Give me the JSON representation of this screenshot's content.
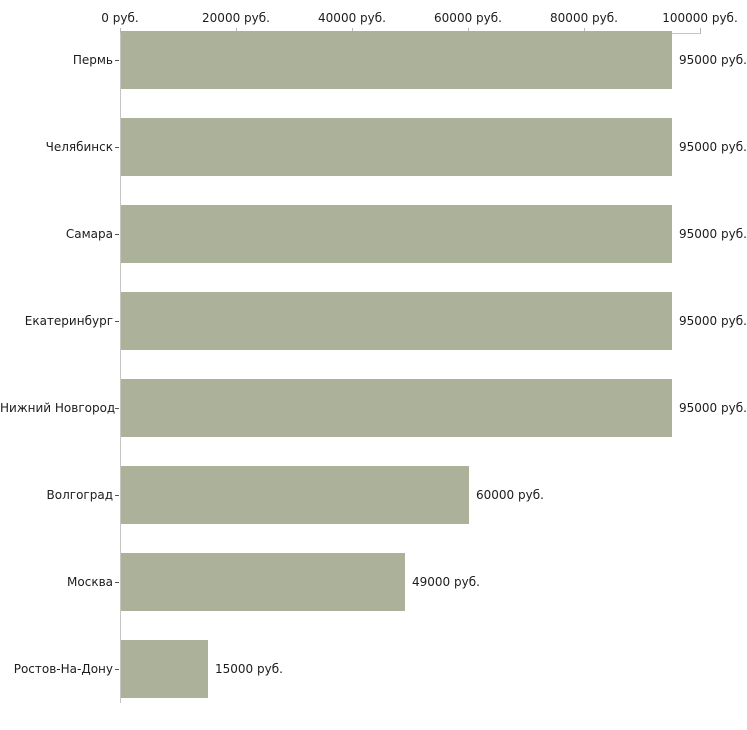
{
  "chart_data": {
    "type": "bar",
    "orientation": "horizontal",
    "title": "",
    "xlabel": "",
    "ylabel": "",
    "unit": "руб.",
    "categories": [
      "Пермь",
      "Челябинск",
      "Самара",
      "Екатеринбург",
      "Нижний Новгород",
      "Волгоград",
      "Москва",
      "Ростов-На-Дону"
    ],
    "values": [
      95000,
      95000,
      95000,
      95000,
      95000,
      60000,
      49000,
      15000
    ],
    "value_labels": [
      "95000 руб.",
      "95000 руб.",
      "95000 руб.",
      "95000 руб.",
      "95000 руб.",
      "60000 руб.",
      "49000 руб.",
      "15000 руб."
    ],
    "x_ticks": [
      {
        "value": 0,
        "label": "0 руб."
      },
      {
        "value": 20000,
        "label": "20000 руб."
      },
      {
        "value": 40000,
        "label": "40000 руб."
      },
      {
        "value": 60000,
        "label": "60000 руб."
      },
      {
        "value": 80000,
        "label": "80000 руб."
      },
      {
        "value": 100000,
        "label": "100000 руб."
      }
    ],
    "xlim": [
      0,
      100000
    ],
    "grid": false,
    "legend": false,
    "x_axis_position": "top"
  },
  "style": {
    "bar_color": "#acb299",
    "axis_line_color": "#c6c6c0",
    "x_tick_color": "#b9b9a9",
    "y_tick_color": "#55544c",
    "text_color": "#1c1c1c",
    "background": "#ffffff"
  }
}
